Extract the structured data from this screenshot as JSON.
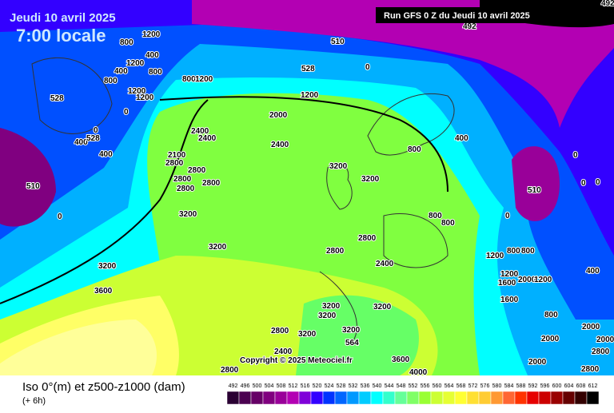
{
  "header": {
    "date": "Jeudi 10 avril 2025",
    "time": "7:00 locale",
    "run": "Run GFS 0 Z du Jeudi 10 avril 2025",
    "copyright": "Copyright © 2025 Meteociel.fr"
  },
  "legend": {
    "title": "Iso 0°(m) et z500-z1000 (dam)",
    "step": "(+ 6h)",
    "scale": [
      492,
      496,
      500,
      504,
      508,
      512,
      516,
      520,
      524,
      528,
      532,
      536,
      540,
      544,
      548,
      552,
      556,
      560,
      564,
      568,
      572,
      576,
      580,
      584,
      588,
      592,
      596,
      600,
      604,
      608,
      612
    ],
    "colors": [
      "#2a0033",
      "#4b0050",
      "#660066",
      "#80007f",
      "#990099",
      "#b300b3",
      "#7f00d9",
      "#3300ff",
      "#0033ff",
      "#0066ff",
      "#0099ff",
      "#00ccff",
      "#00ffff",
      "#33ffcc",
      "#66ff99",
      "#80ff66",
      "#99ff33",
      "#ccff33",
      "#e6ff33",
      "#ffff33",
      "#ffe033",
      "#ffcc33",
      "#ff9933",
      "#ff6633",
      "#ff3300",
      "#e60000",
      "#cc0000",
      "#990000",
      "#660000",
      "#330000",
      "#000000"
    ]
  },
  "contour_labels": [
    "1200",
    "800",
    "400",
    "1200",
    "400",
    "800",
    "800",
    "800",
    "1200",
    "1200",
    "1200",
    "528",
    "510",
    "528",
    "0",
    "1200",
    "0",
    "2000",
    "0",
    "400",
    "528",
    "400",
    "2400",
    "2400",
    "2400",
    "2100",
    "2800",
    "2800",
    "2800",
    "2800",
    "2800",
    "3200",
    "3200",
    "510",
    "0",
    "3200",
    "3200",
    "2800",
    "2800",
    "3200",
    "3600",
    "3200",
    "3200",
    "3200",
    "3200",
    "2800",
    "3200",
    "564",
    "2800",
    "2400",
    "4000",
    "3600",
    "400",
    "0",
    "0",
    "0",
    "510",
    "0",
    "800",
    "800",
    "1200",
    "800",
    "800",
    "1200",
    "1600",
    "2000",
    "1200",
    "400",
    "1600",
    "800",
    "2000",
    "2000",
    "2000",
    "2800",
    "2000",
    "2800",
    "492",
    "492",
    "800",
    "2400"
  ]
}
